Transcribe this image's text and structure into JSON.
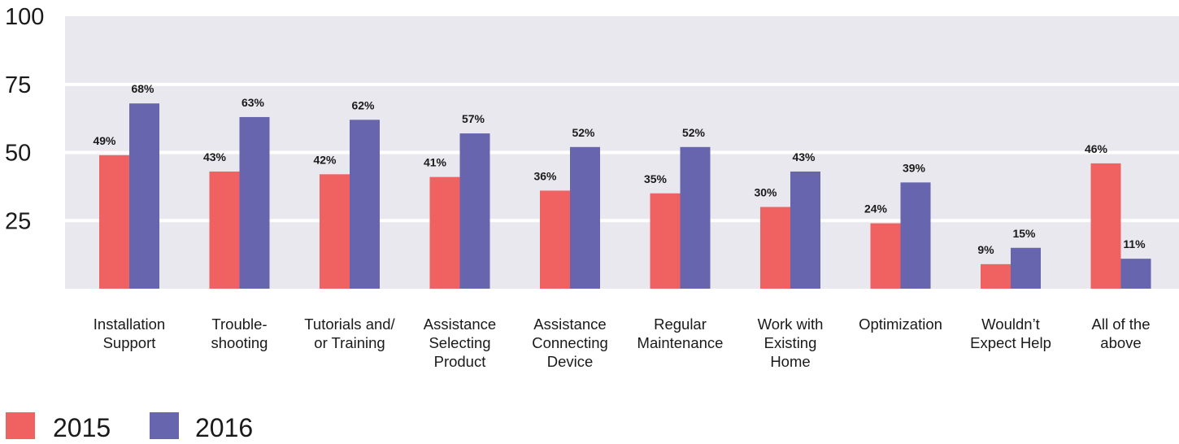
{
  "chart_data": {
    "type": "bar",
    "ylim": [
      0,
      100
    ],
    "yticks": [
      25,
      50,
      75,
      100
    ],
    "grid": true,
    "legend_placement": "bottom-left",
    "categories": [
      [
        "Installation",
        "Support"
      ],
      [
        "Trouble-",
        "shooting"
      ],
      [
        "Tutorials and/",
        "or Training"
      ],
      [
        "Assistance",
        "Selecting",
        "Product"
      ],
      [
        "Assistance",
        "Connecting",
        "Device"
      ],
      [
        "Regular",
        "Maintenance"
      ],
      [
        "Work with",
        "Existing",
        "Home"
      ],
      [
        "Optimization"
      ],
      [
        "Wouldn’t",
        "Expect Help"
      ],
      [
        "All of the",
        "above"
      ]
    ],
    "series": [
      {
        "name": "2015",
        "color": "#f06262",
        "values": [
          49,
          43,
          42,
          41,
          36,
          35,
          30,
          24,
          9,
          46
        ],
        "labels": [
          "49%",
          "43%",
          "42%",
          "41%",
          "36%",
          "35%",
          "30%",
          "24%",
          "9%",
          "46%"
        ]
      },
      {
        "name": "2016",
        "color": "#6665ad",
        "values": [
          68,
          63,
          62,
          57,
          52,
          52,
          43,
          39,
          15,
          11
        ],
        "labels": [
          "68%",
          "63%",
          "62%",
          "57%",
          "52%",
          "52%",
          "43%",
          "39%",
          "15%",
          "11%"
        ]
      }
    ],
    "colors": {
      "plot_background": "#e9e8ee",
      "grid": "#ffffff",
      "axis_text": "#1a1a1a",
      "data_label": "#1a1a1a"
    }
  }
}
